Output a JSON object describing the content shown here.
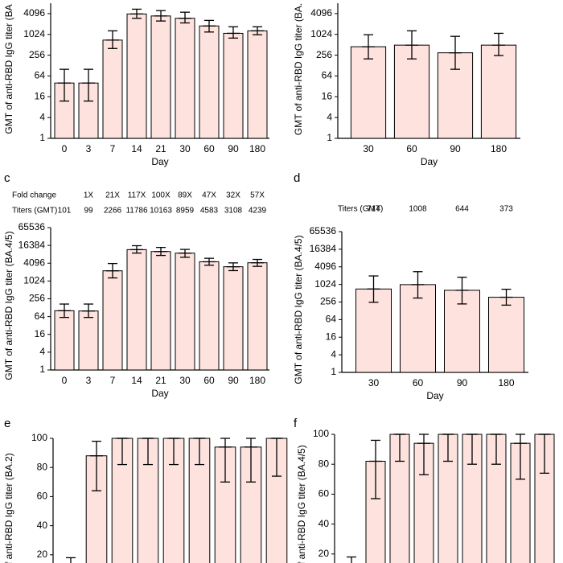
{
  "chart_data": [
    {
      "type": "bar",
      "log_base": 2,
      "ylabel": "GMT of anti-RBD IgG titer (BA",
      "xlabel": "Day",
      "categories": [
        "0",
        "3",
        "7",
        "14",
        "21",
        "30",
        "60",
        "90",
        "180"
      ],
      "values": [
        40,
        40,
        700,
        4000,
        3500,
        3000,
        1800,
        1100,
        1300
      ],
      "error_low": [
        12,
        12,
        400,
        3000,
        2500,
        2200,
        1200,
        800,
        1000
      ],
      "error_high": [
        100,
        100,
        1300,
        5500,
        5000,
        4500,
        2600,
        1700,
        1700
      ],
      "ylim": [
        1,
        8192
      ],
      "yticks": [
        1,
        4,
        16,
        64,
        256,
        1024,
        4096
      ],
      "color": "#fde2de"
    },
    {
      "type": "bar",
      "log_base": 2,
      "ylabel": "GMT of anti-RBD IgG titer (BA.",
      "xlabel": "Day",
      "categories": [
        "30",
        "60",
        "90",
        "180"
      ],
      "values": [
        450,
        500,
        300,
        500
      ],
      "error_low": [
        200,
        200,
        100,
        250
      ],
      "error_high": [
        1000,
        1300,
        900,
        1100
      ],
      "ylim": [
        1,
        8192
      ],
      "yticks": [
        1,
        4,
        16,
        64,
        256,
        1024,
        4096
      ],
      "color": "#fde2de"
    },
    {
      "type": "bar",
      "log_base": 2,
      "panel": "c",
      "ylabel": "GMT of anti-RBD IgG titer (BA.4/5)",
      "xlabel": "Day",
      "fold_label": "Fold change",
      "fold_change": [
        null,
        "1X",
        "21X",
        "117X",
        "100X",
        "89X",
        "47X",
        "32X",
        "57X"
      ],
      "titer_label": "Titers (GMT)",
      "categories": [
        "0",
        "3",
        "7",
        "14",
        "21",
        "30",
        "60",
        "90",
        "180"
      ],
      "values": [
        101,
        99,
        2266,
        11786,
        10163,
        8959,
        4583,
        3108,
        4239
      ],
      "error_low": [
        60,
        60,
        1300,
        9000,
        7500,
        6500,
        3500,
        2300,
        3200
      ],
      "error_high": [
        170,
        170,
        4000,
        16000,
        14000,
        12000,
        6000,
        4200,
        5500
      ],
      "ylim": [
        1,
        65536
      ],
      "yticks": [
        1,
        4,
        16,
        64,
        256,
        1024,
        4096,
        16384,
        65536
      ],
      "color": "#fde2de"
    },
    {
      "type": "bar",
      "log_base": 2,
      "panel": "d",
      "ylabel": "GMT of anti-RBD IgG titer (BA.4/5)",
      "xlabel": "Day",
      "titer_label": "Titers (GMT)",
      "categories": [
        "30",
        "60",
        "90",
        "180"
      ],
      "values": [
        714,
        1008,
        644,
        373
      ],
      "error_low": [
        250,
        350,
        220,
        200
      ],
      "error_high": [
        2000,
        2800,
        1800,
        700
      ],
      "ylim": [
        1,
        65536
      ],
      "yticks": [
        1,
        4,
        16,
        64,
        256,
        1024,
        4096,
        16384,
        65536
      ],
      "color": "#fde2de"
    },
    {
      "type": "bar",
      "panel": "e",
      "ylabel": "f anti-RBD IgG titer (BA.2)",
      "categories": [
        null,
        null,
        null,
        null,
        null,
        null,
        null,
        null,
        null
      ],
      "values": [
        0,
        88,
        100,
        100,
        100,
        100,
        94,
        94,
        100
      ],
      "error_low": [
        0,
        64,
        82,
        82,
        82,
        82,
        70,
        70,
        74
      ],
      "error_high": [
        18,
        98,
        100,
        100,
        100,
        100,
        100,
        100,
        100
      ],
      "ylim": [
        0,
        100
      ],
      "yticks": [
        20,
        40,
        60,
        80,
        100
      ],
      "color": "#fde2de"
    },
    {
      "type": "bar",
      "panel": "f",
      "ylabel": "f anti-RBD IgG titer (BA.4/5)",
      "categories": [
        null,
        null,
        null,
        null,
        null,
        null,
        null,
        null,
        null
      ],
      "values": [
        0,
        82,
        100,
        94,
        100,
        100,
        100,
        94,
        100
      ],
      "error_low": [
        0,
        57,
        82,
        73,
        82,
        80,
        80,
        70,
        74
      ],
      "error_high": [
        18,
        96,
        100,
        100,
        100,
        100,
        100,
        100,
        100
      ],
      "ylim": [
        0,
        100
      ],
      "yticks": [
        20,
        40,
        60,
        80,
        100
      ],
      "color": "#fde2de"
    }
  ]
}
